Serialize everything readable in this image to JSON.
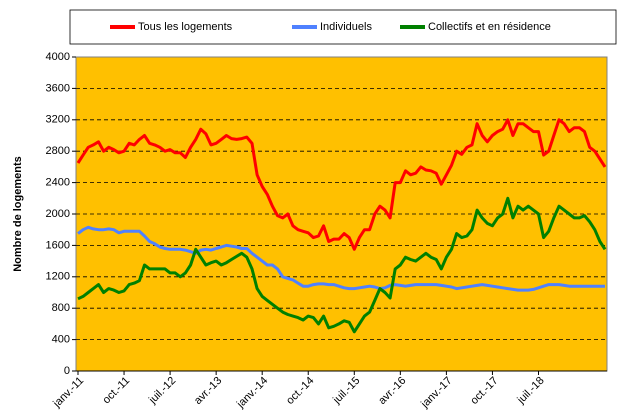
{
  "chart_data": {
    "type": "line",
    "y_label": "Nombre de logements",
    "categories": [
      "janv.-11",
      null,
      null,
      null,
      null,
      null,
      null,
      null,
      null,
      "oct.-11",
      null,
      null,
      null,
      null,
      null,
      null,
      null,
      null,
      "juil.-12",
      null,
      null,
      null,
      null,
      null,
      null,
      null,
      null,
      "avr.-13",
      null,
      null,
      null,
      null,
      null,
      null,
      null,
      null,
      "janv.-14",
      null,
      null,
      null,
      null,
      null,
      null,
      null,
      null,
      "oct.-14",
      null,
      null,
      null,
      null,
      null,
      null,
      null,
      null,
      "juil.-15",
      null,
      null,
      null,
      null,
      null,
      null,
      null,
      null,
      "avr.-16",
      null,
      null,
      null,
      null,
      null,
      null,
      null,
      null,
      "janv.-17",
      null,
      null,
      null,
      null,
      null,
      null,
      null,
      null,
      "oct.-17",
      null,
      null,
      null,
      null,
      null,
      null,
      null,
      null,
      "juil.-18",
      null,
      null,
      null,
      null,
      null,
      null,
      null,
      null,
      null,
      null,
      null,
      null,
      null
    ],
    "series": [
      {
        "name": "Tous les logements",
        "color": "#ff0000",
        "values": [
          2650,
          2750,
          2850,
          2880,
          2920,
          2800,
          2850,
          2820,
          2780,
          2800,
          2900,
          2880,
          2950,
          3000,
          2900,
          2880,
          2850,
          2800,
          2820,
          2780,
          2780,
          2720,
          2850,
          2950,
          3080,
          3020,
          2880,
          2900,
          2950,
          3000,
          2960,
          2950,
          2960,
          2980,
          2900,
          2500,
          2350,
          2250,
          2100,
          1980,
          1950,
          2000,
          1850,
          1800,
          1780,
          1760,
          1700,
          1720,
          1850,
          1650,
          1680,
          1680,
          1750,
          1700,
          1550,
          1700,
          1800,
          1800,
          2000,
          2100,
          2050,
          1950,
          2400,
          2400,
          2550,
          2500,
          2520,
          2600,
          2560,
          2550,
          2520,
          2380,
          2500,
          2620,
          2800,
          2760,
          2850,
          2880,
          3150,
          3000,
          2920,
          3000,
          3050,
          3080,
          3200,
          3000,
          3150,
          3150,
          3100,
          3050,
          3050,
          2750,
          2800,
          3000,
          3200,
          3150,
          3050,
          3100,
          3100,
          3050,
          2850,
          2800,
          2700,
          2600
        ]
      },
      {
        "name": "Individuels",
        "color": "#4f81ff",
        "values": [
          1750,
          1800,
          1830,
          1810,
          1800,
          1800,
          1810,
          1800,
          1760,
          1780,
          1780,
          1780,
          1780,
          1720,
          1650,
          1620,
          1580,
          1560,
          1550,
          1550,
          1550,
          1540,
          1520,
          1500,
          1540,
          1550,
          1540,
          1560,
          1580,
          1600,
          1590,
          1580,
          1560,
          1560,
          1500,
          1450,
          1400,
          1350,
          1350,
          1300,
          1200,
          1180,
          1160,
          1120,
          1080,
          1080,
          1100,
          1110,
          1110,
          1100,
          1100,
          1080,
          1060,
          1050,
          1050,
          1060,
          1070,
          1080,
          1070,
          1050,
          1060,
          1090,
          1100,
          1090,
          1080,
          1090,
          1100,
          1100,
          1100,
          1100,
          1100,
          1090,
          1080,
          1070,
          1050,
          1060,
          1070,
          1080,
          1090,
          1100,
          1090,
          1080,
          1070,
          1060,
          1050,
          1040,
          1030,
          1030,
          1030,
          1040,
          1060,
          1080,
          1100,
          1100,
          1100,
          1090,
          1080,
          1080,
          1080,
          1080,
          1080,
          1080,
          1080,
          1080
        ]
      },
      {
        "name": "Collectifs et en résidence",
        "color": "#008000",
        "values": [
          920,
          950,
          1000,
          1050,
          1100,
          1000,
          1050,
          1030,
          1000,
          1020,
          1100,
          1120,
          1150,
          1350,
          1300,
          1300,
          1300,
          1300,
          1250,
          1250,
          1200,
          1250,
          1350,
          1550,
          1450,
          1350,
          1380,
          1400,
          1350,
          1380,
          1420,
          1460,
          1500,
          1450,
          1300,
          1050,
          950,
          900,
          850,
          800,
          750,
          720,
          700,
          680,
          650,
          700,
          680,
          600,
          700,
          550,
          570,
          600,
          640,
          620,
          500,
          600,
          700,
          750,
          900,
          1050,
          1000,
          930,
          1300,
          1350,
          1450,
          1420,
          1400,
          1450,
          1500,
          1450,
          1420,
          1300,
          1450,
          1550,
          1750,
          1700,
          1720,
          1800,
          2050,
          1950,
          1880,
          1850,
          1950,
          2000,
          2200,
          1950,
          2100,
          2050,
          2100,
          2050,
          2000,
          1700,
          1780,
          1950,
          2100,
          2050,
          2000,
          1950,
          1950,
          1980,
          1900,
          1800,
          1650,
          1550
        ]
      }
    ],
    "ylim": [
      0,
      4000
    ],
    "yticks": [
      0,
      400,
      800,
      1200,
      1600,
      2000,
      2400,
      2800,
      3200,
      3600,
      4000
    ],
    "grid": true,
    "plot_background": "#ffc000",
    "legend": "top"
  }
}
